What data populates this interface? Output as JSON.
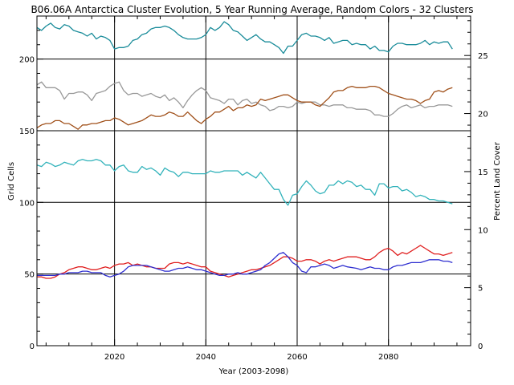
{
  "chart_data": {
    "type": "line",
    "title": "B06.06A Antarctica Cluster Evolution, 5 Year Running Average, Random Colors - 32 Clusters",
    "xlabel": "Year (2003-2098)",
    "ylabel": "Grid Cells",
    "ylabel_right": "Percent Land Cover",
    "xlim": [
      2003,
      2098
    ],
    "ylim": [
      0,
      230
    ],
    "ylim_right": [
      0,
      28.4
    ],
    "x_ticks": [
      2020,
      2040,
      2060,
      2080
    ],
    "y_ticks": [
      0,
      50,
      100,
      150,
      200
    ],
    "y_ticks_right": [
      0,
      5,
      10,
      15,
      20,
      25
    ],
    "grid": true,
    "series": [
      {
        "color": "#1a8c9a",
        "x": [
          2003,
          2004,
          2005,
          2006,
          2007,
          2008,
          2009,
          2010,
          2011,
          2012,
          2013,
          2014,
          2015,
          2016,
          2017,
          2018,
          2019,
          2020,
          2021,
          2022,
          2023,
          2024,
          2025,
          2026,
          2027,
          2028,
          2029,
          2030,
          2031,
          2032,
          2033,
          2034,
          2035,
          2036,
          2037,
          2038,
          2039,
          2040,
          2041,
          2042,
          2043,
          2044,
          2045,
          2046,
          2047,
          2048,
          2049,
          2050,
          2051,
          2052,
          2053,
          2054,
          2055,
          2056,
          2057,
          2058,
          2059,
          2060,
          2061,
          2062,
          2063,
          2064,
          2065,
          2066,
          2067,
          2068,
          2069,
          2070,
          2071,
          2072,
          2073,
          2074,
          2075,
          2076,
          2077,
          2078,
          2079,
          2080,
          2081,
          2082,
          2083,
          2084,
          2085,
          2086,
          2087,
          2088,
          2089,
          2090,
          2091,
          2092,
          2093,
          2094
        ],
        "values": [
          222,
          220,
          223,
          225,
          222,
          221,
          224,
          223,
          220,
          219,
          218,
          216,
          218,
          214,
          216,
          215,
          213,
          207,
          208,
          208,
          209,
          213,
          214,
          217,
          218,
          221,
          222,
          222,
          223,
          222,
          220,
          217,
          215,
          214,
          214,
          214,
          215,
          217,
          222,
          220,
          222,
          226,
          224,
          220,
          219,
          216,
          213,
          215,
          217,
          214,
          212,
          212,
          210,
          208,
          204,
          209,
          209,
          213,
          217,
          218,
          216,
          216,
          215,
          213,
          215,
          211,
          212,
          213,
          213,
          210,
          211,
          210,
          210,
          207,
          209,
          206,
          206,
          205,
          209,
          211,
          211,
          210,
          210,
          210,
          211,
          213,
          210,
          212,
          211,
          212,
          212,
          207
        ]
      },
      {
        "color": "#999999",
        "x": [
          2003,
          2004,
          2005,
          2006,
          2007,
          2008,
          2009,
          2010,
          2011,
          2012,
          2013,
          2014,
          2015,
          2016,
          2017,
          2018,
          2019,
          2020,
          2021,
          2022,
          2023,
          2024,
          2025,
          2026,
          2027,
          2028,
          2029,
          2030,
          2031,
          2032,
          2033,
          2034,
          2035,
          2036,
          2037,
          2038,
          2039,
          2040,
          2041,
          2042,
          2043,
          2044,
          2045,
          2046,
          2047,
          2048,
          2049,
          2050,
          2051,
          2052,
          2053,
          2054,
          2055,
          2056,
          2057,
          2058,
          2059,
          2060,
          2061,
          2062,
          2063,
          2064,
          2065,
          2066,
          2067,
          2068,
          2069,
          2070,
          2071,
          2072,
          2073,
          2074,
          2075,
          2076,
          2077,
          2078,
          2079,
          2080,
          2081,
          2082,
          2083,
          2084,
          2085,
          2086,
          2087,
          2088,
          2089,
          2090,
          2091,
          2092,
          2093,
          2094
        ],
        "values": [
          182,
          184,
          180,
          180,
          180,
          178,
          172,
          176,
          176,
          177,
          177,
          175,
          171,
          176,
          177,
          178,
          181,
          183,
          184,
          178,
          175,
          176,
          176,
          174,
          175,
          176,
          174,
          173,
          175,
          171,
          173,
          170,
          166,
          171,
          175,
          178,
          180,
          178,
          173,
          172,
          171,
          169,
          172,
          172,
          168,
          171,
          172,
          169,
          170,
          168,
          167,
          164,
          165,
          167,
          167,
          166,
          167,
          170,
          169,
          170,
          170,
          170,
          168,
          168,
          167,
          168,
          168,
          168,
          166,
          166,
          165,
          165,
          165,
          164,
          161,
          161,
          160,
          160,
          162,
          165,
          167,
          168,
          166,
          167,
          168,
          166,
          167,
          167,
          168,
          168,
          168,
          167
        ]
      },
      {
        "color": "#a0501a",
        "x": [
          2003,
          2004,
          2005,
          2006,
          2007,
          2008,
          2009,
          2010,
          2011,
          2012,
          2013,
          2014,
          2015,
          2016,
          2017,
          2018,
          2019,
          2020,
          2021,
          2022,
          2023,
          2024,
          2025,
          2026,
          2027,
          2028,
          2029,
          2030,
          2031,
          2032,
          2033,
          2034,
          2035,
          2036,
          2037,
          2038,
          2039,
          2040,
          2041,
          2042,
          2043,
          2044,
          2045,
          2046,
          2047,
          2048,
          2049,
          2050,
          2051,
          2052,
          2053,
          2054,
          2055,
          2056,
          2057,
          2058,
          2059,
          2060,
          2061,
          2062,
          2063,
          2064,
          2065,
          2066,
          2067,
          2068,
          2069,
          2070,
          2071,
          2072,
          2073,
          2074,
          2075,
          2076,
          2077,
          2078,
          2079,
          2080,
          2081,
          2082,
          2083,
          2084,
          2085,
          2086,
          2087,
          2088,
          2089,
          2090,
          2091,
          2092,
          2093,
          2094
        ],
        "values": [
          152,
          154,
          155,
          155,
          157,
          157,
          155,
          155,
          153,
          151,
          154,
          154,
          155,
          155,
          156,
          157,
          157,
          159,
          158,
          156,
          154,
          155,
          156,
          157,
          159,
          161,
          160,
          160,
          161,
          163,
          162,
          160,
          160,
          163,
          160,
          157,
          155,
          158,
          160,
          163,
          163,
          165,
          167,
          164,
          166,
          166,
          168,
          167,
          168,
          172,
          171,
          172,
          173,
          174,
          175,
          175,
          173,
          171,
          170,
          170,
          170,
          168,
          167,
          170,
          173,
          177,
          178,
          178,
          180,
          181,
          180,
          180,
          180,
          181,
          181,
          180,
          178,
          176,
          175,
          174,
          173,
          172,
          172,
          171,
          169,
          171,
          172,
          177,
          178,
          177,
          179,
          180
        ]
      },
      {
        "color": "#33b3bb",
        "x": [
          2003,
          2004,
          2005,
          2006,
          2007,
          2008,
          2009,
          2010,
          2011,
          2012,
          2013,
          2014,
          2015,
          2016,
          2017,
          2018,
          2019,
          2020,
          2021,
          2022,
          2023,
          2024,
          2025,
          2026,
          2027,
          2028,
          2029,
          2030,
          2031,
          2032,
          2033,
          2034,
          2035,
          2036,
          2037,
          2038,
          2039,
          2040,
          2041,
          2042,
          2043,
          2044,
          2045,
          2046,
          2047,
          2048,
          2049,
          2050,
          2051,
          2052,
          2053,
          2054,
          2055,
          2056,
          2057,
          2058,
          2059,
          2060,
          2061,
          2062,
          2063,
          2064,
          2065,
          2066,
          2067,
          2068,
          2069,
          2070,
          2071,
          2072,
          2073,
          2074,
          2075,
          2076,
          2077,
          2078,
          2079,
          2080,
          2081,
          2082,
          2083,
          2084,
          2085,
          2086,
          2087,
          2088,
          2089,
          2090,
          2091,
          2092,
          2093,
          2094
        ],
        "values": [
          126,
          125,
          128,
          127,
          125,
          126,
          128,
          127,
          126,
          129,
          130,
          129,
          129,
          130,
          129,
          126,
          126,
          122,
          125,
          126,
          122,
          121,
          121,
          125,
          123,
          124,
          122,
          119,
          124,
          122,
          121,
          118,
          121,
          121,
          120,
          120,
          120,
          120,
          122,
          121,
          121,
          122,
          122,
          122,
          122,
          119,
          121,
          119,
          117,
          121,
          117,
          113,
          109,
          109,
          102,
          98,
          105,
          106,
          111,
          115,
          112,
          108,
          106,
          107,
          112,
          112,
          115,
          113,
          115,
          114,
          111,
          112,
          109,
          109,
          105,
          113,
          113,
          110,
          111,
          111,
          108,
          109,
          107,
          104,
          105,
          104,
          102,
          102,
          101,
          101,
          100,
          99
        ]
      },
      {
        "color": "#e02020",
        "x": [
          2003,
          2004,
          2005,
          2006,
          2007,
          2008,
          2009,
          2010,
          2011,
          2012,
          2013,
          2014,
          2015,
          2016,
          2017,
          2018,
          2019,
          2020,
          2021,
          2022,
          2023,
          2024,
          2025,
          2026,
          2027,
          2028,
          2029,
          2030,
          2031,
          2032,
          2033,
          2034,
          2035,
          2036,
          2037,
          2038,
          2039,
          2040,
          2041,
          2042,
          2043,
          2044,
          2045,
          2046,
          2047,
          2048,
          2049,
          2050,
          2051,
          2052,
          2053,
          2054,
          2055,
          2056,
          2057,
          2058,
          2059,
          2060,
          2061,
          2062,
          2063,
          2064,
          2065,
          2066,
          2067,
          2068,
          2069,
          2070,
          2071,
          2072,
          2073,
          2074,
          2075,
          2076,
          2077,
          2078,
          2079,
          2080,
          2081,
          2082,
          2083,
          2084,
          2085,
          2086,
          2087,
          2088,
          2089,
          2090,
          2091,
          2092,
          2093,
          2094
        ],
        "values": [
          48,
          48,
          47,
          47,
          48,
          50,
          51,
          53,
          54,
          55,
          55,
          54,
          53,
          53,
          54,
          55,
          54,
          56,
          57,
          57,
          58,
          56,
          57,
          56,
          55,
          55,
          54,
          54,
          54,
          57,
          58,
          58,
          57,
          58,
          57,
          56,
          55,
          55,
          52,
          51,
          50,
          49,
          48,
          49,
          50,
          51,
          52,
          53,
          53,
          54,
          55,
          56,
          58,
          60,
          62,
          62,
          61,
          59,
          59,
          60,
          60,
          59,
          57,
          59,
          60,
          59,
          60,
          61,
          62,
          62,
          62,
          61,
          60,
          60,
          62,
          65,
          67,
          68,
          66,
          63,
          65,
          64,
          66,
          68,
          70,
          68,
          66,
          64,
          64,
          63,
          64,
          65
        ]
      },
      {
        "color": "#3030d0",
        "x": [
          2003,
          2004,
          2005,
          2006,
          2007,
          2008,
          2009,
          2010,
          2011,
          2012,
          2013,
          2014,
          2015,
          2016,
          2017,
          2018,
          2019,
          2020,
          2021,
          2022,
          2023,
          2024,
          2025,
          2026,
          2027,
          2028,
          2029,
          2030,
          2031,
          2032,
          2033,
          2034,
          2035,
          2036,
          2037,
          2038,
          2039,
          2040,
          2041,
          2042,
          2043,
          2044,
          2045,
          2046,
          2047,
          2048,
          2049,
          2050,
          2051,
          2052,
          2053,
          2054,
          2055,
          2056,
          2057,
          2058,
          2059,
          2060,
          2061,
          2062,
          2063,
          2064,
          2065,
          2066,
          2067,
          2068,
          2069,
          2070,
          2071,
          2073,
          2074,
          2075,
          2076,
          2077,
          2078,
          2079,
          2080,
          2081,
          2082,
          2083,
          2084,
          2085,
          2086,
          2087,
          2088,
          2089,
          2090,
          2091,
          2092,
          2093,
          2094
        ],
        "values": [
          49,
          49,
          49,
          49,
          49,
          50,
          50,
          51,
          51,
          51,
          52,
          52,
          51,
          51,
          51,
          49,
          48,
          49,
          50,
          52,
          55,
          56,
          56,
          56,
          56,
          55,
          54,
          53,
          52,
          52,
          53,
          54,
          54,
          55,
          54,
          53,
          53,
          52,
          51,
          50,
          49,
          49,
          50,
          50,
          51,
          50,
          50,
          51,
          52,
          53,
          56,
          58,
          61,
          64,
          65,
          62,
          58,
          56,
          52,
          51,
          55,
          55,
          56,
          57,
          56,
          54,
          55,
          56,
          55,
          54,
          53,
          54,
          55,
          54,
          54,
          53,
          53,
          55,
          56,
          56,
          57,
          58,
          58,
          58,
          59,
          60,
          60,
          60,
          59,
          59,
          58
        ]
      }
    ]
  }
}
